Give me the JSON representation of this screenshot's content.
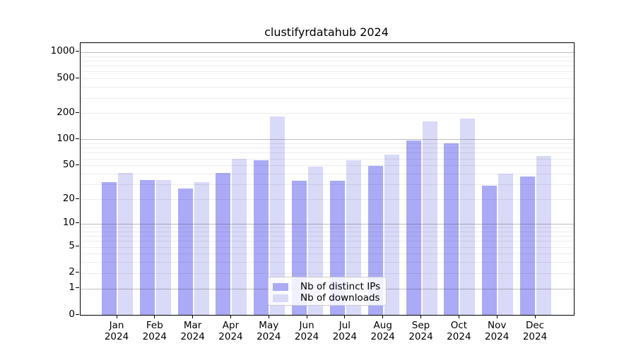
{
  "chart_data": {
    "type": "bar",
    "title": "clustifyrdatahub 2024",
    "x_months": [
      "Jan",
      "Feb",
      "Mar",
      "Apr",
      "May",
      "Jun",
      "Jul",
      "Aug",
      "Sep",
      "Oct",
      "Nov",
      "Dec"
    ],
    "x_year": "2024",
    "series": [
      {
        "name": "Nb of distinct IPs",
        "color": "#aaaaf7",
        "values": [
          32,
          34,
          27,
          41,
          57,
          33,
          33,
          49,
          98,
          91,
          29,
          37
        ]
      },
      {
        "name": "Nb of downloads",
        "color": "#d9d9f8",
        "values": [
          41,
          34,
          32,
          60,
          184,
          48,
          57,
          67,
          162,
          175,
          40,
          64
        ]
      }
    ],
    "yscale": "log1p",
    "ylim": [
      0,
      1272
    ],
    "y_tick_values": [
      1000,
      500,
      200,
      100,
      50,
      20,
      10,
      5,
      2,
      1,
      0
    ],
    "y_major_grid": [
      1,
      10,
      100,
      1000
    ],
    "y_minor_grid": [
      2,
      3,
      4,
      5,
      6,
      7,
      8,
      9,
      20,
      30,
      40,
      50,
      60,
      70,
      80,
      90,
      200,
      300,
      400,
      500,
      600,
      700,
      800,
      900
    ],
    "grid": true,
    "legend_position": "lower-center-inside"
  }
}
